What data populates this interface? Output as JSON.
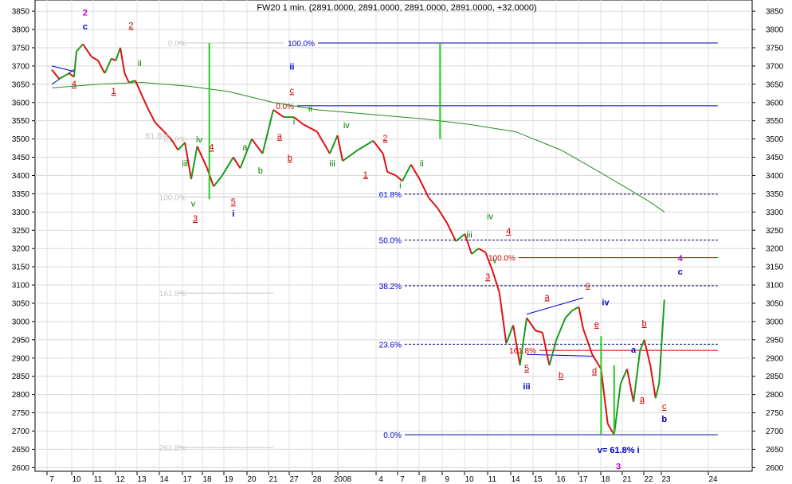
{
  "chart_data": {
    "type": "line",
    "title": "FW20 1 min. (2891.0000, 2891.0000, 2891.0000, 2891.0000, +32.0000)",
    "ylim": [
      2580,
      3860
    ],
    "yticks": [
      2600,
      2650,
      2700,
      2750,
      2800,
      2850,
      2900,
      2950,
      3000,
      3050,
      3100,
      3150,
      3200,
      3250,
      3300,
      3350,
      3400,
      3450,
      3500,
      3550,
      3600,
      3650,
      3700,
      3750,
      3800,
      3850
    ],
    "x_categories": [
      "7",
      "10",
      "11",
      "12",
      "13",
      "14",
      "17",
      "18",
      "19",
      "20",
      "21",
      "27",
      "28",
      "2008",
      "4",
      "7",
      "8",
      "9",
      "10",
      "11",
      "14",
      "15",
      "16",
      "17",
      "18",
      "21",
      "22",
      "23",
      "24"
    ],
    "grid": true,
    "price_series": [
      {
        "i": 0.0,
        "v": 3690
      },
      {
        "i": 0.3,
        "v": 3665
      },
      {
        "i": 0.7,
        "v": 3680
      },
      {
        "i": 0.9,
        "v": 3670
      },
      {
        "i": 1.0,
        "v": 3740
      },
      {
        "i": 1.3,
        "v": 3760
      },
      {
        "i": 1.7,
        "v": 3725
      },
      {
        "i": 2.0,
        "v": 3715
      },
      {
        "i": 2.3,
        "v": 3680
      },
      {
        "i": 2.6,
        "v": 3720
      },
      {
        "i": 2.8,
        "v": 3715
      },
      {
        "i": 3.0,
        "v": 3750
      },
      {
        "i": 3.2,
        "v": 3680
      },
      {
        "i": 3.4,
        "v": 3655
      },
      {
        "i": 3.7,
        "v": 3660
      },
      {
        "i": 4.0,
        "v": 3620
      },
      {
        "i": 4.3,
        "v": 3580
      },
      {
        "i": 4.6,
        "v": 3545
      },
      {
        "i": 5.0,
        "v": 3520
      },
      {
        "i": 5.3,
        "v": 3500
      },
      {
        "i": 5.6,
        "v": 3470
      },
      {
        "i": 5.9,
        "v": 3490
      },
      {
        "i": 6.2,
        "v": 3390
      },
      {
        "i": 6.5,
        "v": 3480
      },
      {
        "i": 7.0,
        "v": 3420
      },
      {
        "i": 7.3,
        "v": 3370
      },
      {
        "i": 7.7,
        "v": 3400
      },
      {
        "i": 8.2,
        "v": 3450
      },
      {
        "i": 8.5,
        "v": 3420
      },
      {
        "i": 9.0,
        "v": 3500
      },
      {
        "i": 9.5,
        "v": 3460
      },
      {
        "i": 10.0,
        "v": 3580
      },
      {
        "i": 10.5,
        "v": 3560
      },
      {
        "i": 11.0,
        "v": 3560
      },
      {
        "i": 11.4,
        "v": 3540
      },
      {
        "i": 12.0,
        "v": 3520
      },
      {
        "i": 12.5,
        "v": 3460
      },
      {
        "i": 12.8,
        "v": 3510
      },
      {
        "i": 13.0,
        "v": 3440
      },
      {
        "i": 13.4,
        "v": 3470
      },
      {
        "i": 13.8,
        "v": 3495
      },
      {
        "i": 14.1,
        "v": 3460
      },
      {
        "i": 14.3,
        "v": 3410
      },
      {
        "i": 14.7,
        "v": 3400
      },
      {
        "i": 15.0,
        "v": 3385
      },
      {
        "i": 15.4,
        "v": 3430
      },
      {
        "i": 15.8,
        "v": 3390
      },
      {
        "i": 16.2,
        "v": 3340
      },
      {
        "i": 16.6,
        "v": 3310
      },
      {
        "i": 17.0,
        "v": 3270
      },
      {
        "i": 17.4,
        "v": 3220
      },
      {
        "i": 17.8,
        "v": 3240
      },
      {
        "i": 18.1,
        "v": 3185
      },
      {
        "i": 18.4,
        "v": 3200
      },
      {
        "i": 18.7,
        "v": 3190
      },
      {
        "i": 19.0,
        "v": 3140
      },
      {
        "i": 19.3,
        "v": 3080
      },
      {
        "i": 19.6,
        "v": 2940
      },
      {
        "i": 19.9,
        "v": 2990
      },
      {
        "i": 20.2,
        "v": 2880
      },
      {
        "i": 20.5,
        "v": 3010
      },
      {
        "i": 20.9,
        "v": 2975
      },
      {
        "i": 21.2,
        "v": 2970
      },
      {
        "i": 21.5,
        "v": 2880
      },
      {
        "i": 21.8,
        "v": 2950
      },
      {
        "i": 22.2,
        "v": 3010
      },
      {
        "i": 22.5,
        "v": 3030
      },
      {
        "i": 22.8,
        "v": 3040
      },
      {
        "i": 23.0,
        "v": 2980
      },
      {
        "i": 23.4,
        "v": 2910
      },
      {
        "i": 23.8,
        "v": 2870
      },
      {
        "i": 24.1,
        "v": 2720
      },
      {
        "i": 24.4,
        "v": 2690
      },
      {
        "i": 24.7,
        "v": 2830
      },
      {
        "i": 25.0,
        "v": 2870
      },
      {
        "i": 25.3,
        "v": 2780
      },
      {
        "i": 25.6,
        "v": 2920
      },
      {
        "i": 25.8,
        "v": 2950
      },
      {
        "i": 26.1,
        "v": 2880
      },
      {
        "i": 26.4,
        "v": 2790
      },
      {
        "i": 26.6,
        "v": 2830
      },
      {
        "i": 26.9,
        "v": 3060
      }
    ],
    "ma_series": [
      {
        "i": 0.0,
        "v": 3640
      },
      {
        "i": 2.0,
        "v": 3650
      },
      {
        "i": 4.0,
        "v": 3655
      },
      {
        "i": 6.0,
        "v": 3645
      },
      {
        "i": 8.0,
        "v": 3630
      },
      {
        "i": 10.0,
        "v": 3600
      },
      {
        "i": 12.0,
        "v": 3580
      },
      {
        "i": 14.0,
        "v": 3565
      },
      {
        "i": 16.0,
        "v": 3555
      },
      {
        "i": 18.0,
        "v": 3540
      },
      {
        "i": 20.0,
        "v": 3520
      },
      {
        "i": 22.0,
        "v": 3470
      },
      {
        "i": 24.0,
        "v": 3400
      },
      {
        "i": 26.0,
        "v": 3330
      },
      {
        "i": 26.9,
        "v": 3300
      }
    ],
    "fib_levels": [
      {
        "text": "100.0%",
        "price": 3763,
        "i0": 11.0,
        "i1": 28.2,
        "color": "#0000a0",
        "label_color": "#0000cc"
      },
      {
        "text": "0.0%",
        "price": 3591,
        "i0": 10.0,
        "i1": 28.2,
        "color": "#0000a0",
        "label_color": "#cc0000"
      },
      {
        "text": "61.8%",
        "price": 3349,
        "i0": 14.0,
        "i1": 28.2,
        "color": "#000060",
        "label_color": "#0000cc"
      },
      {
        "text": "50.0%",
        "price": 3223,
        "i0": 14.0,
        "i1": 28.2,
        "color": "#000060",
        "label_color": "#0000cc"
      },
      {
        "text": "100.0%",
        "price": 3175,
        "i0": 19.1,
        "i1": 28.2,
        "color": "#cc0000",
        "label_color": "#cc0000"
      },
      {
        "text": "38.2%",
        "price": 3098,
        "i0": 14.0,
        "i1": 28.2,
        "color": "#000060",
        "label_color": "#0000cc"
      },
      {
        "text": "23.6%",
        "price": 2938,
        "i0": 14.0,
        "i1": 28.2,
        "color": "#000060",
        "label_color": "#0000cc"
      },
      {
        "text": "161.8%",
        "price": 2921,
        "i0": 20.0,
        "i1": 28.2,
        "color": "#cc0000",
        "label_color": "#cc0000"
      },
      {
        "text": "0.0%",
        "price": 2690,
        "i0": 14.0,
        "i1": 28.2,
        "color": "#0000a0",
        "label_color": "#0000cc"
      }
    ],
    "faint_levels": [
      {
        "text": "0.0%",
        "price": 3763,
        "i0": 4.7,
        "i1": 10.5
      },
      {
        "text": "61.8%",
        "price": 3500,
        "i0": 4.7,
        "i1": 10.0
      },
      {
        "text": "100.0%",
        "price": 3341,
        "i0": 4.7,
        "i1": 14.0
      },
      {
        "text": "161.8%",
        "price": 3078,
        "i0": 4.7,
        "i1": 10.0
      },
      {
        "text": "261.8%",
        "price": 2655,
        "i0": 4.7,
        "i1": 10.0
      }
    ],
    "wave_labels": [
      {
        "t": "2",
        "i": 1.4,
        "p": 3838,
        "c": "#cc00cc",
        "b": true
      },
      {
        "t": "c",
        "i": 1.4,
        "p": 3800,
        "c": "#0000cc",
        "b": true
      },
      {
        "t": "2",
        "i": 3.5,
        "p": 3803,
        "c": "#cc0000",
        "u": true
      },
      {
        "t": "4",
        "i": 0.9,
        "p": 3643,
        "c": "#cc0000",
        "u": true
      },
      {
        "t": "1",
        "i": 2.7,
        "p": 3623,
        "c": "#cc0000",
        "u": true
      },
      {
        "t": "ii",
        "i": 3.9,
        "p": 3700,
        "c": "#008000"
      },
      {
        "t": "61.8%",
        "i": 4.7,
        "p": 3500,
        "c": "#c8c8c8"
      },
      {
        "t": "iii",
        "i": 5.9,
        "p": 3425,
        "c": "#008000"
      },
      {
        "t": "iv",
        "i": 6.6,
        "p": 3490,
        "c": "#008000"
      },
      {
        "t": "4",
        "i": 7.2,
        "p": 3470,
        "c": "#cc0000",
        "u": true
      },
      {
        "t": "v",
        "i": 6.3,
        "p": 3315,
        "c": "#008000"
      },
      {
        "t": "3",
        "i": 6.4,
        "p": 3275,
        "c": "#cc0000",
        "u": true
      },
      {
        "t": "5",
        "i": 8.2,
        "p": 3320,
        "c": "#cc0000",
        "u": true
      },
      {
        "t": "i",
        "i": 8.2,
        "p": 3288,
        "c": "#0000cc",
        "b": true
      },
      {
        "t": "a",
        "i": 8.7,
        "p": 3470,
        "c": "#008000"
      },
      {
        "t": "b",
        "i": 9.4,
        "p": 3405,
        "c": "#008000"
      },
      {
        "t": "a",
        "i": 10.3,
        "p": 3500,
        "c": "#cc0000",
        "u": true
      },
      {
        "t": "b",
        "i": 10.8,
        "p": 3440,
        "c": "#cc0000",
        "u": true
      },
      {
        "t": "ii",
        "i": 10.9,
        "p": 3690,
        "c": "#0000cc",
        "b": true
      },
      {
        "t": "c",
        "i": 10.9,
        "p": 3625,
        "c": "#cc0000",
        "u": true
      },
      {
        "t": "i",
        "i": 11.0,
        "p": 3540,
        "c": "#008000"
      },
      {
        "t": "ii",
        "i": 11.7,
        "p": 3575,
        "c": "#008000"
      },
      {
        "t": "iv",
        "i": 13.1,
        "p": 3530,
        "c": "#008000"
      },
      {
        "t": "iii",
        "i": 12.6,
        "p": 3425,
        "c": "#008000"
      },
      {
        "t": "2",
        "i": 14.2,
        "p": 3495,
        "c": "#cc0000",
        "u": true
      },
      {
        "t": "1",
        "i": 13.6,
        "p": 3395,
        "c": "#cc0000",
        "u": true
      },
      {
        "t": "i",
        "i": 14.9,
        "p": 3365,
        "c": "#008000"
      },
      {
        "t": "ii",
        "i": 15.9,
        "p": 3425,
        "c": "#008000"
      },
      {
        "t": "iv",
        "i": 18.9,
        "p": 3280,
        "c": "#008000"
      },
      {
        "t": "4",
        "i": 19.7,
        "p": 3240,
        "c": "#cc0000",
        "u": true
      },
      {
        "t": "iii",
        "i": 18.0,
        "p": 3230,
        "c": "#008000"
      },
      {
        "t": "v",
        "i": 19.1,
        "p": 3160,
        "c": "#008000"
      },
      {
        "t": "3",
        "i": 18.8,
        "p": 3115,
        "c": "#cc0000",
        "u": true
      },
      {
        "t": "a",
        "i": 21.4,
        "p": 3060,
        "c": "#cc0000",
        "u": true
      },
      {
        "t": "c",
        "i": 23.2,
        "p": 3092,
        "c": "#cc0000",
        "u": true
      },
      {
        "t": "iv",
        "i": 24.0,
        "p": 3045,
        "c": "#0000cc",
        "b": true
      },
      {
        "t": "e",
        "i": 23.6,
        "p": 2985,
        "c": "#cc0000",
        "u": true
      },
      {
        "t": "5",
        "i": 20.5,
        "p": 2865,
        "c": "#cc0000",
        "u": true
      },
      {
        "t": "iii",
        "i": 20.5,
        "p": 2815,
        "c": "#0000cc",
        "b": true
      },
      {
        "t": "b",
        "i": 22.0,
        "p": 2845,
        "c": "#cc0000",
        "u": true
      },
      {
        "t": "d",
        "i": 23.5,
        "p": 2857,
        "c": "#cc0000",
        "u": true
      },
      {
        "t": "a",
        "i": 25.3,
        "p": 2915,
        "c": "#0000cc",
        "b": true
      },
      {
        "t": "b",
        "i": 25.8,
        "p": 2987,
        "c": "#cc0000",
        "u": true
      },
      {
        "t": "a",
        "i": 25.7,
        "p": 2780,
        "c": "#cc0000",
        "u": true
      },
      {
        "t": "c",
        "i": 26.9,
        "p": 2760,
        "c": "#cc0000",
        "u": true
      },
      {
        "t": "b",
        "i": 26.9,
        "p": 2725,
        "c": "#0000cc",
        "b": true
      },
      {
        "t": "4",
        "i": 27.3,
        "p": 3165,
        "c": "#cc00cc",
        "b": true
      },
      {
        "t": "c",
        "i": 27.3,
        "p": 3128,
        "c": "#0000cc",
        "b": true
      },
      {
        "t": "v= 61.8% i",
        "i": 24.6,
        "p": 2640,
        "c": "#0000cc",
        "b": true
      },
      {
        "t": "3",
        "i": 24.6,
        "p": 2595,
        "c": "#cc00cc",
        "b": true
      }
    ],
    "vertical_markers": [
      {
        "i": 7.1,
        "p0": 3763,
        "p1": 3335,
        "c": "#22cc22"
      },
      {
        "i": 16.7,
        "p0": 3763,
        "p1": 3500,
        "c": "#22cc22"
      },
      {
        "i": 23.8,
        "p0": 2960,
        "p1": 2690,
        "c": "#22cc22"
      },
      {
        "i": 24.4,
        "p0": 2880,
        "p1": 2690,
        "c": "#22cc22"
      }
    ],
    "trend_lines": [
      {
        "i0": 0.0,
        "p0": 3700,
        "i1": 0.9,
        "p1": 3685,
        "c": "#0000cc"
      },
      {
        "i0": 0.0,
        "p0": 3650,
        "i1": 0.9,
        "p1": 3690,
        "c": "#0000cc"
      },
      {
        "i0": 20.5,
        "p0": 3020,
        "i1": 23.0,
        "p1": 3065,
        "c": "#0000cc"
      },
      {
        "i0": 20.5,
        "p0": 2910,
        "i1": 23.5,
        "p1": 2905,
        "c": "#0000cc"
      }
    ]
  }
}
